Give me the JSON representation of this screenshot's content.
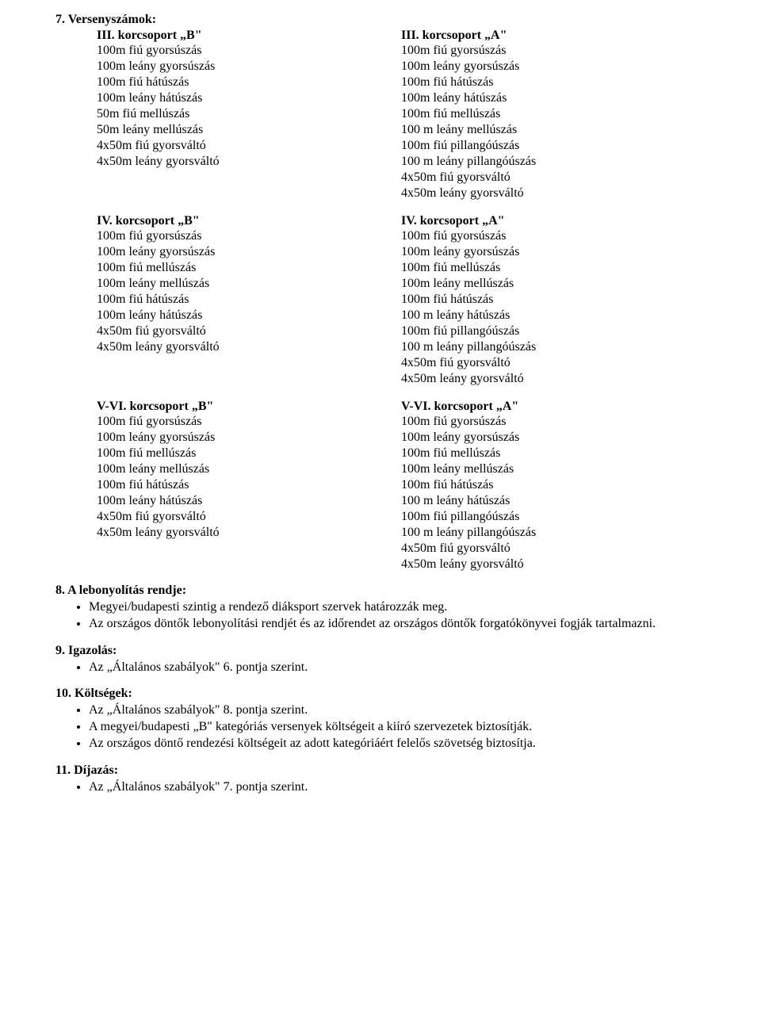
{
  "section7": {
    "title": "7. Versenyszámok:",
    "groups": [
      {
        "left": {
          "title": "III. korcsoport „B\"",
          "events": [
            "100m fiú gyorsúszás",
            "100m leány gyorsúszás",
            "100m fiú hátúszás",
            "100m leány hátúszás",
            " 50m fiú mellúszás",
            " 50m leány mellúszás",
            "4x50m fiú gyorsváltó",
            "4x50m leány gyorsváltó"
          ]
        },
        "right": {
          "title": "III. korcsoport „A\"",
          "events": [
            "100m fiú gyorsúszás",
            "100m leány gyorsúszás",
            "100m fiú hátúszás",
            "100m leány hátúszás",
            "100m fiú mellúszás",
            "100 m leány mellúszás",
            "100m fiú pillangóúszás",
            "100 m leány pillangóúszás",
            "4x50m fiú gyorsváltó",
            "4x50m leány gyorsváltó"
          ]
        }
      },
      {
        "left": {
          "title": "IV. korcsoport „B\"",
          "events": [
            "100m fiú gyorsúszás",
            "100m leány gyorsúszás",
            "100m fiú mellúszás",
            "100m leány mellúszás",
            "100m fiú hátúszás",
            "100m leány hátúszás",
            "4x50m fiú gyorsváltó",
            "4x50m leány gyorsváltó"
          ]
        },
        "right": {
          "title": "IV. korcsoport „A\"",
          "events": [
            "100m fiú gyorsúszás",
            "100m leány gyorsúszás",
            "100m fiú mellúszás",
            "100m leány mellúszás",
            "100m fiú hátúszás",
            "100 m leány hátúszás",
            "100m fiú pillangóúszás",
            "100 m leány pillangóúszás",
            "4x50m fiú gyorsváltó",
            "4x50m leány gyorsváltó"
          ]
        }
      },
      {
        "left": {
          "title": "V-VI. korcsoport „B\"",
          "events": [
            "100m fiú gyorsúszás",
            "100m leány gyorsúszás",
            "100m fiú mellúszás",
            "100m leány mellúszás",
            "100m fiú hátúszás",
            "100m leány hátúszás",
            "4x50m fiú gyorsváltó",
            "4x50m leány gyorsváltó"
          ]
        },
        "right": {
          "title": "V-VI. korcsoport „A\"",
          "events": [
            "100m fiú gyorsúszás",
            "100m leány gyorsúszás",
            "100m fiú mellúszás",
            "100m leány mellúszás",
            "100m fiú hátúszás",
            "100 m leány hátúszás",
            "100m fiú pillangóúszás",
            "100 m leány pillangóúszás",
            "4x50m fiú gyorsváltó",
            "4x50m leány gyorsváltó"
          ]
        }
      }
    ]
  },
  "section8": {
    "title": "8. A lebonyolítás rendje:",
    "bullets": [
      "Megyei/budapesti szintig a rendező diáksport szervek határozzák meg.",
      "Az országos döntők lebonyolítási rendjét és az időrendet az országos döntők forgatókönyvei fogják tartalmazni."
    ]
  },
  "section9": {
    "title": "9. Igazolás:",
    "bullets": [
      "Az „Általános szabályok\" 6. pontja szerint."
    ]
  },
  "section10": {
    "title": "10. Költségek:",
    "bullets": [
      "Az „Általános szabályok\" 8. pontja szerint.",
      "A megyei/budapesti „B\" kategóriás versenyek költségeit a kiíró szervezetek biztosítják.",
      "Az országos döntő rendezési költségeit az adott kategóriáért felelős szövetség biztosítja."
    ]
  },
  "section11": {
    "title": "11. Díjazás:",
    "bullets": [
      "Az „Általános szabályok\" 7. pontja szerint."
    ]
  }
}
